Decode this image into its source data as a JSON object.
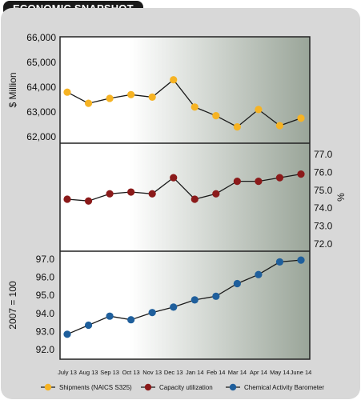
{
  "header": {
    "title": "ECONOMIC SNAPSHOT"
  },
  "colors": {
    "panel_background": "#d8d8d8",
    "plot_gradient_light": "#ffffff",
    "plot_gradient_dark": "#9aa599",
    "shipments": "#f6b323",
    "capacity": "#8b1a1a",
    "cab": "#1f5f9c"
  },
  "chart_data": {
    "type": "line",
    "categories": [
      "July 13",
      "Aug 13",
      "Sep 13",
      "Oct 13",
      "Nov 13",
      "Dec 13",
      "Jan 14",
      "Feb 14",
      "Mar 14",
      "Apr 14",
      "May 14",
      "June 14"
    ],
    "series": [
      {
        "name": "Shipments (NAICS S325)",
        "values": [
          63800,
          63350,
          63550,
          63700,
          63600,
          64300,
          63200,
          62850,
          62400,
          63100,
          62450,
          62750
        ],
        "ylabel": "$ Million",
        "yticks": [
          "66,000",
          "65,000",
          "64,000",
          "63,000",
          "62,000"
        ],
        "ylim": [
          62000,
          66000
        ],
        "axis_side": "left"
      },
      {
        "name": "Capacity utilization",
        "values": [
          74.5,
          74.4,
          74.8,
          74.9,
          74.8,
          75.7,
          74.5,
          74.8,
          75.5,
          75.5,
          75.7,
          75.9
        ],
        "ylabel": "%",
        "yticks": [
          "77.0",
          "76.0",
          "75.0",
          "74.0",
          "73.0",
          "72.0"
        ],
        "ylim": [
          72.0,
          77.0
        ],
        "axis_side": "right"
      },
      {
        "name": "Chemical Activity Barometer",
        "values": [
          92.85,
          93.35,
          93.85,
          93.65,
          94.05,
          94.35,
          94.75,
          94.95,
          95.65,
          96.15,
          96.85,
          96.95
        ],
        "ylabel": "2007 = 100",
        "yticks": [
          "97.0",
          "96.0",
          "95.0",
          "94.0",
          "93.0",
          "92.0"
        ],
        "ylim": [
          92.0,
          97.0
        ],
        "axis_side": "left"
      }
    ],
    "legend_position": "bottom",
    "grid": false
  }
}
